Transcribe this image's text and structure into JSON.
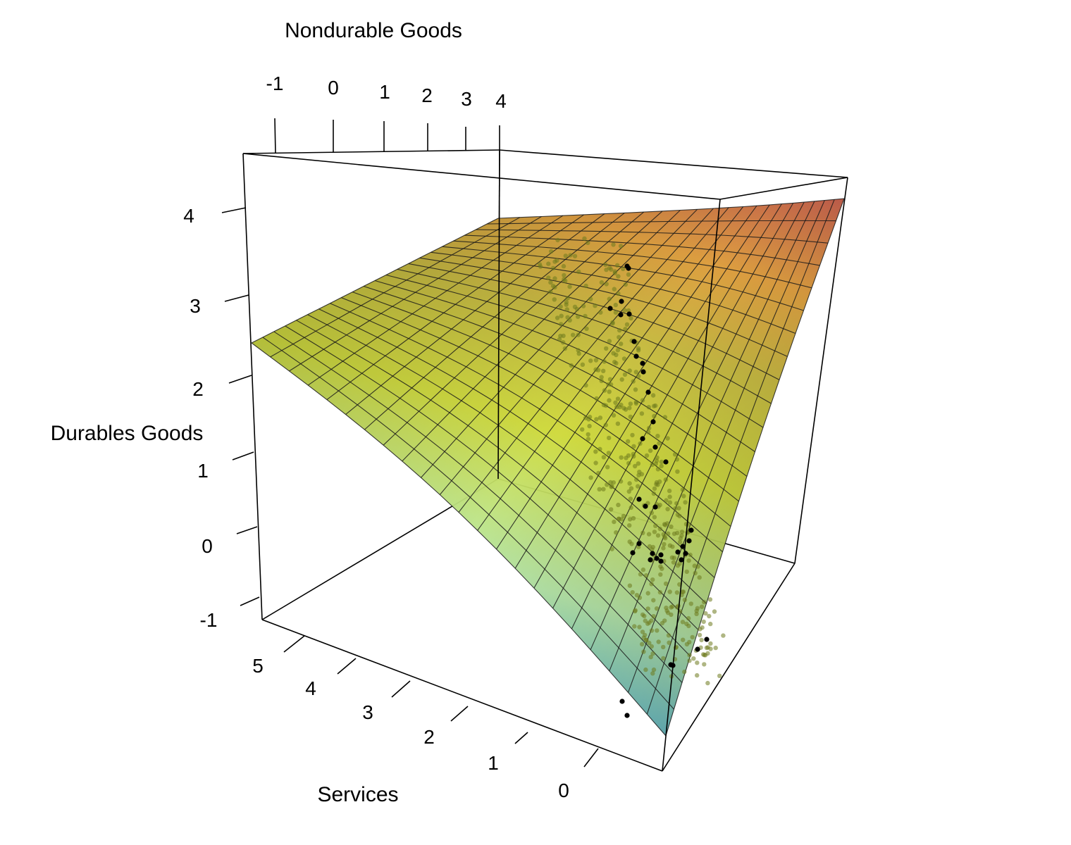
{
  "chart_data": {
    "type": "surface3d",
    "title": "",
    "axes": {
      "x": {
        "label": "Nondurable Goods",
        "ticks": [
          "-1",
          "0",
          "1",
          "2",
          "3",
          "4"
        ],
        "range": [
          -1,
          4
        ]
      },
      "y": {
        "label": "Durables Goods",
        "ticks": [
          "4",
          "3",
          "2",
          "1",
          "0",
          "-1"
        ],
        "range": [
          -1,
          4
        ]
      },
      "z": {
        "label": "Services",
        "ticks": [
          "5",
          "4",
          "3",
          "2",
          "1",
          "0"
        ],
        "range": [
          0,
          5
        ]
      }
    },
    "surface": {
      "description_value_range": [
        -1,
        4
      ],
      "corner_values": {
        "services_max_nondurable_min": 2.4,
        "services_max_nondurable_max": 4.0,
        "services_min_nondurable_max": 3.9,
        "services_min_nondurable_min": -1.0
      },
      "colorscale": [
        "#6fcfd9",
        "#bff5b0",
        "#d9e53a",
        "#d8c43e",
        "#e8a23a",
        "#c75a46"
      ]
    },
    "points": {
      "highlight_color": "#000000",
      "cluster_color": "#6e7a1e"
    },
    "grid": true,
    "legend": "none"
  }
}
